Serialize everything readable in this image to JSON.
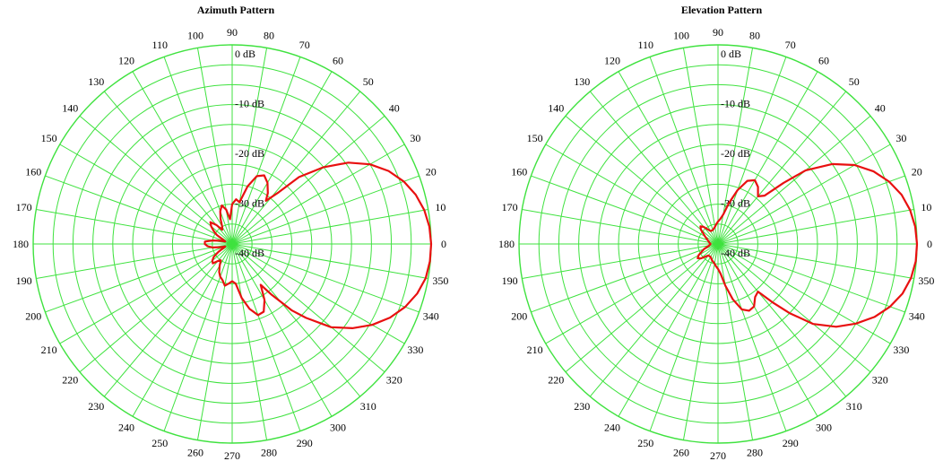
{
  "chart_data": [
    {
      "type": "polar-line",
      "title": "Azimuth Pattern",
      "angle_unit": "degrees",
      "angle_ticks": [
        "0",
        "10",
        "20",
        "30",
        "40",
        "50",
        "60",
        "70",
        "80",
        "90",
        "100",
        "110",
        "120",
        "130",
        "140",
        "150",
        "160",
        "170",
        "180",
        "190",
        "200",
        "210",
        "220",
        "230",
        "240",
        "250",
        "260",
        "270",
        "280",
        "290",
        "300",
        "310",
        "320",
        "330",
        "340",
        "350"
      ],
      "radial_unit": "dB",
      "radial_range": [
        -40,
        0
      ],
      "radial_ticks": [
        "0 dB",
        "-10 dB",
        "-20 dB",
        "-30 dB",
        "-40 dB"
      ],
      "grid": true,
      "grid_color": "#3fe23f",
      "series": [
        {
          "color": "#e81010",
          "points": [
            [
              0,
              0
            ],
            [
              5,
              -0.2
            ],
            [
              10,
              -0.8
            ],
            [
              15,
              -1.8
            ],
            [
              20,
              -3.3
            ],
            [
              25,
              -5.3
            ],
            [
              30,
              -8
            ],
            [
              35,
              -11.5
            ],
            [
              40,
              -16
            ],
            [
              45,
              -21
            ],
            [
              48,
              -26
            ],
            [
              52,
              -29
            ],
            [
              55,
              -27.5
            ],
            [
              60,
              -25.8
            ],
            [
              65,
              -24.8
            ],
            [
              70,
              -25.5
            ],
            [
              75,
              -28
            ],
            [
              80,
              -31.5
            ],
            [
              85,
              -31
            ],
            [
              90,
              -32
            ],
            [
              95,
              -35
            ],
            [
              100,
              -33
            ],
            [
              105,
              -32
            ],
            [
              110,
              -33
            ],
            [
              115,
              -34.5
            ],
            [
              120,
              -36
            ],
            [
              125,
              -36.5
            ],
            [
              130,
              -35
            ],
            [
              135,
              -33.8
            ],
            [
              140,
              -34.5
            ],
            [
              145,
              -35.5
            ],
            [
              150,
              -36.5
            ],
            [
              155,
              -38
            ],
            [
              160,
              -38.5
            ],
            [
              165,
              -37.5
            ],
            [
              170,
              -36
            ],
            [
              175,
              -34.5
            ],
            [
              180,
              -34.5
            ],
            [
              185,
              -35
            ],
            [
              190,
              -36
            ],
            [
              195,
              -37.5
            ],
            [
              200,
              -38.5
            ],
            [
              205,
              -38
            ],
            [
              210,
              -36.8
            ],
            [
              215,
              -35.5
            ],
            [
              220,
              -34.8
            ],
            [
              225,
              -34.5
            ],
            [
              230,
              -35.5
            ],
            [
              235,
              -36
            ],
            [
              240,
              -35
            ],
            [
              245,
              -33.8
            ],
            [
              250,
              -33
            ],
            [
              255,
              -32.5
            ],
            [
              260,
              -31.5
            ],
            [
              265,
              -32
            ],
            [
              270,
              -32.5
            ],
            [
              275,
              -32
            ],
            [
              280,
              -29
            ],
            [
              285,
              -26.5
            ],
            [
              290,
              -24.8
            ],
            [
              295,
              -25
            ],
            [
              300,
              -27
            ],
            [
              305,
              -30
            ],
            [
              308,
              -27
            ],
            [
              312,
              -22
            ],
            [
              315,
              -19
            ],
            [
              320,
              -14
            ],
            [
              325,
              -10.5
            ],
            [
              330,
              -7.5
            ],
            [
              335,
              -5
            ],
            [
              340,
              -3
            ],
            [
              345,
              -1.5
            ],
            [
              350,
              -0.5
            ],
            [
              355,
              -0.1
            ],
            [
              360,
              0
            ]
          ]
        }
      ]
    },
    {
      "type": "polar-line",
      "title": "Elevation Pattern",
      "angle_unit": "degrees",
      "angle_ticks": [
        "0",
        "10",
        "20",
        "30",
        "40",
        "50",
        "60",
        "70",
        "80",
        "90",
        "100",
        "110",
        "120",
        "130",
        "140",
        "150",
        "160",
        "170",
        "180",
        "190",
        "200",
        "210",
        "220",
        "230",
        "240",
        "250",
        "260",
        "270",
        "280",
        "290",
        "300",
        "310",
        "320",
        "330",
        "340",
        "350"
      ],
      "radial_unit": "dB",
      "radial_range": [
        -40,
        0
      ],
      "radial_ticks": [
        "0 dB",
        "-10 dB",
        "-20 dB",
        "-30 dB",
        "-40 dB"
      ],
      "grid": true,
      "grid_color": "#3fe23f",
      "series": [
        {
          "color": "#e81010",
          "points": [
            [
              0,
              0
            ],
            [
              5,
              -0.2
            ],
            [
              10,
              -0.8
            ],
            [
              15,
              -1.8
            ],
            [
              20,
              -3.4
            ],
            [
              25,
              -5.5
            ],
            [
              30,
              -8.3
            ],
            [
              35,
              -12
            ],
            [
              40,
              -17
            ],
            [
              43,
              -22
            ],
            [
              46,
              -26.5
            ],
            [
              50,
              -27.5
            ],
            [
              55,
              -26
            ],
            [
              60,
              -25.2
            ],
            [
              65,
              -26
            ],
            [
              70,
              -28.5
            ],
            [
              75,
              -31.5
            ],
            [
              80,
              -34
            ],
            [
              85,
              -35
            ],
            [
              90,
              -35.5
            ],
            [
              95,
              -36
            ],
            [
              100,
              -36.5
            ],
            [
              110,
              -37
            ],
            [
              120,
              -37
            ],
            [
              130,
              -35.5
            ],
            [
              135,
              -35
            ],
            [
              140,
              -35.5
            ],
            [
              150,
              -37
            ],
            [
              160,
              -37.8
            ],
            [
              170,
              -38.2
            ],
            [
              180,
              -38.5
            ],
            [
              190,
              -38.2
            ],
            [
              200,
              -37
            ],
            [
              210,
              -35.5
            ],
            [
              215,
              -35
            ],
            [
              220,
              -35.5
            ],
            [
              230,
              -37
            ],
            [
              240,
              -37
            ],
            [
              250,
              -36.5
            ],
            [
              260,
              -36
            ],
            [
              265,
              -35.5
            ],
            [
              270,
              -35
            ],
            [
              275,
              -34
            ],
            [
              280,
              -31.5
            ],
            [
              285,
              -28.5
            ],
            [
              290,
              -26
            ],
            [
              295,
              -25.2
            ],
            [
              300,
              -25.5
            ],
            [
              305,
              -27
            ],
            [
              310,
              -27.5
            ],
            [
              313,
              -24
            ],
            [
              316,
              -20
            ],
            [
              320,
              -15
            ],
            [
              325,
              -11
            ],
            [
              330,
              -8
            ],
            [
              335,
              -5.3
            ],
            [
              340,
              -3.2
            ],
            [
              345,
              -1.6
            ],
            [
              350,
              -0.6
            ],
            [
              355,
              -0.1
            ],
            [
              360,
              0
            ]
          ]
        }
      ]
    }
  ]
}
